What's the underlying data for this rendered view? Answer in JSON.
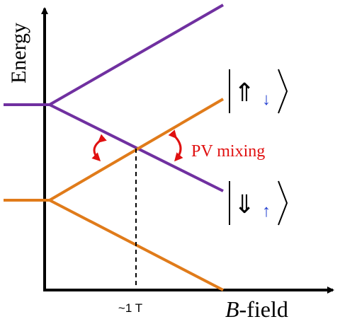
{
  "axes": {
    "y_label": "Energy",
    "x_label": {
      "italic": "B",
      "rest": "-field"
    },
    "x_marker": "~1 T"
  },
  "annotation": "PV mixing",
  "states": [
    {
      "big": "⇑",
      "small": "↓"
    },
    {
      "big": "⇓",
      "small": "↑"
    }
  ]
}
